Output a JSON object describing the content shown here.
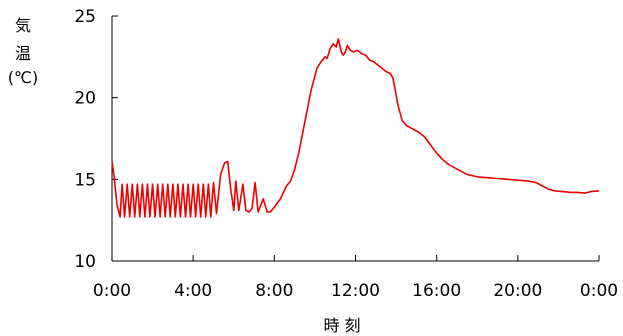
{
  "chart_data": {
    "type": "line",
    "title": "",
    "ylabel_lines": [
      "気",
      "温",
      "(℃)"
    ],
    "xlabel": "時 刻",
    "xlim": [
      0,
      24
    ],
    "ylim": [
      10,
      25
    ],
    "x_ticks": [
      0,
      4,
      8,
      12,
      16,
      20,
      24
    ],
    "x_tick_labels": [
      "0:00",
      "4:00",
      "8:00",
      "12:00",
      "16:00",
      "20:00",
      "0:00"
    ],
    "y_ticks": [
      10,
      15,
      20,
      25
    ],
    "y_tick_labels": [
      "10",
      "15",
      "20",
      "25"
    ],
    "grid": false,
    "series": [
      {
        "color": "#ee0000",
        "points": [
          [
            0.0,
            16.1
          ],
          [
            0.1,
            15.2
          ],
          [
            0.25,
            13.4
          ],
          [
            0.4,
            12.7
          ],
          [
            0.5,
            14.7
          ],
          [
            0.62,
            12.7
          ],
          [
            0.75,
            14.7
          ],
          [
            0.87,
            12.7
          ],
          [
            1.0,
            14.7
          ],
          [
            1.12,
            12.7
          ],
          [
            1.25,
            14.7
          ],
          [
            1.37,
            12.7
          ],
          [
            1.5,
            14.7
          ],
          [
            1.62,
            12.7
          ],
          [
            1.75,
            14.7
          ],
          [
            1.87,
            12.7
          ],
          [
            2.0,
            14.7
          ],
          [
            2.12,
            12.7
          ],
          [
            2.25,
            14.7
          ],
          [
            2.37,
            12.7
          ],
          [
            2.5,
            14.7
          ],
          [
            2.62,
            12.7
          ],
          [
            2.75,
            14.7
          ],
          [
            2.87,
            12.7
          ],
          [
            3.0,
            14.7
          ],
          [
            3.12,
            12.7
          ],
          [
            3.25,
            14.7
          ],
          [
            3.37,
            12.7
          ],
          [
            3.5,
            14.7
          ],
          [
            3.62,
            12.7
          ],
          [
            3.75,
            14.7
          ],
          [
            3.87,
            12.7
          ],
          [
            4.0,
            14.7
          ],
          [
            4.12,
            12.7
          ],
          [
            4.25,
            14.7
          ],
          [
            4.37,
            12.7
          ],
          [
            4.5,
            14.7
          ],
          [
            4.62,
            12.7
          ],
          [
            4.75,
            14.7
          ],
          [
            4.87,
            12.7
          ],
          [
            5.0,
            14.8
          ],
          [
            5.15,
            12.9
          ],
          [
            5.35,
            15.3
          ],
          [
            5.55,
            16.0
          ],
          [
            5.7,
            16.1
          ],
          [
            5.85,
            14.4
          ],
          [
            6.0,
            13.1
          ],
          [
            6.1,
            14.9
          ],
          [
            6.25,
            13.1
          ],
          [
            6.45,
            14.7
          ],
          [
            6.6,
            13.1
          ],
          [
            6.75,
            13.0
          ],
          [
            6.9,
            13.2
          ],
          [
            7.05,
            14.8
          ],
          [
            7.2,
            13.0
          ],
          [
            7.45,
            13.8
          ],
          [
            7.65,
            13.0
          ],
          [
            7.8,
            13.0
          ],
          [
            8.0,
            13.3
          ],
          [
            8.3,
            13.8
          ],
          [
            8.6,
            14.6
          ],
          [
            8.8,
            14.9
          ],
          [
            9.0,
            15.6
          ],
          [
            9.2,
            16.6
          ],
          [
            9.5,
            18.5
          ],
          [
            9.8,
            20.4
          ],
          [
            10.1,
            21.8
          ],
          [
            10.3,
            22.2
          ],
          [
            10.5,
            22.5
          ],
          [
            10.6,
            22.4
          ],
          [
            10.75,
            23.0
          ],
          [
            10.9,
            23.3
          ],
          [
            11.05,
            23.1
          ],
          [
            11.15,
            23.6
          ],
          [
            11.3,
            22.8
          ],
          [
            11.4,
            22.6
          ],
          [
            11.5,
            22.8
          ],
          [
            11.6,
            23.2
          ],
          [
            11.75,
            22.9
          ],
          [
            11.9,
            22.8
          ],
          [
            12.1,
            22.9
          ],
          [
            12.3,
            22.7
          ],
          [
            12.5,
            22.6
          ],
          [
            12.7,
            22.3
          ],
          [
            12.9,
            22.2
          ],
          [
            13.1,
            22.0
          ],
          [
            13.3,
            21.8
          ],
          [
            13.5,
            21.6
          ],
          [
            13.7,
            21.5
          ],
          [
            13.85,
            21.2
          ],
          [
            13.95,
            20.5
          ],
          [
            14.1,
            19.5
          ],
          [
            14.3,
            18.6
          ],
          [
            14.5,
            18.3
          ],
          [
            14.8,
            18.1
          ],
          [
            15.1,
            17.9
          ],
          [
            15.4,
            17.6
          ],
          [
            15.7,
            17.1
          ],
          [
            16.0,
            16.6
          ],
          [
            16.3,
            16.2
          ],
          [
            16.6,
            15.9
          ],
          [
            16.9,
            15.7
          ],
          [
            17.2,
            15.5
          ],
          [
            17.5,
            15.3
          ],
          [
            18.0,
            15.15
          ],
          [
            18.5,
            15.1
          ],
          [
            19.0,
            15.05
          ],
          [
            19.5,
            15.0
          ],
          [
            20.0,
            14.95
          ],
          [
            20.5,
            14.9
          ],
          [
            20.9,
            14.8
          ],
          [
            21.2,
            14.6
          ],
          [
            21.5,
            14.4
          ],
          [
            21.8,
            14.3
          ],
          [
            22.2,
            14.25
          ],
          [
            22.6,
            14.2
          ],
          [
            23.0,
            14.2
          ],
          [
            23.3,
            14.15
          ],
          [
            23.6,
            14.25
          ],
          [
            24.0,
            14.3
          ]
        ]
      }
    ]
  }
}
